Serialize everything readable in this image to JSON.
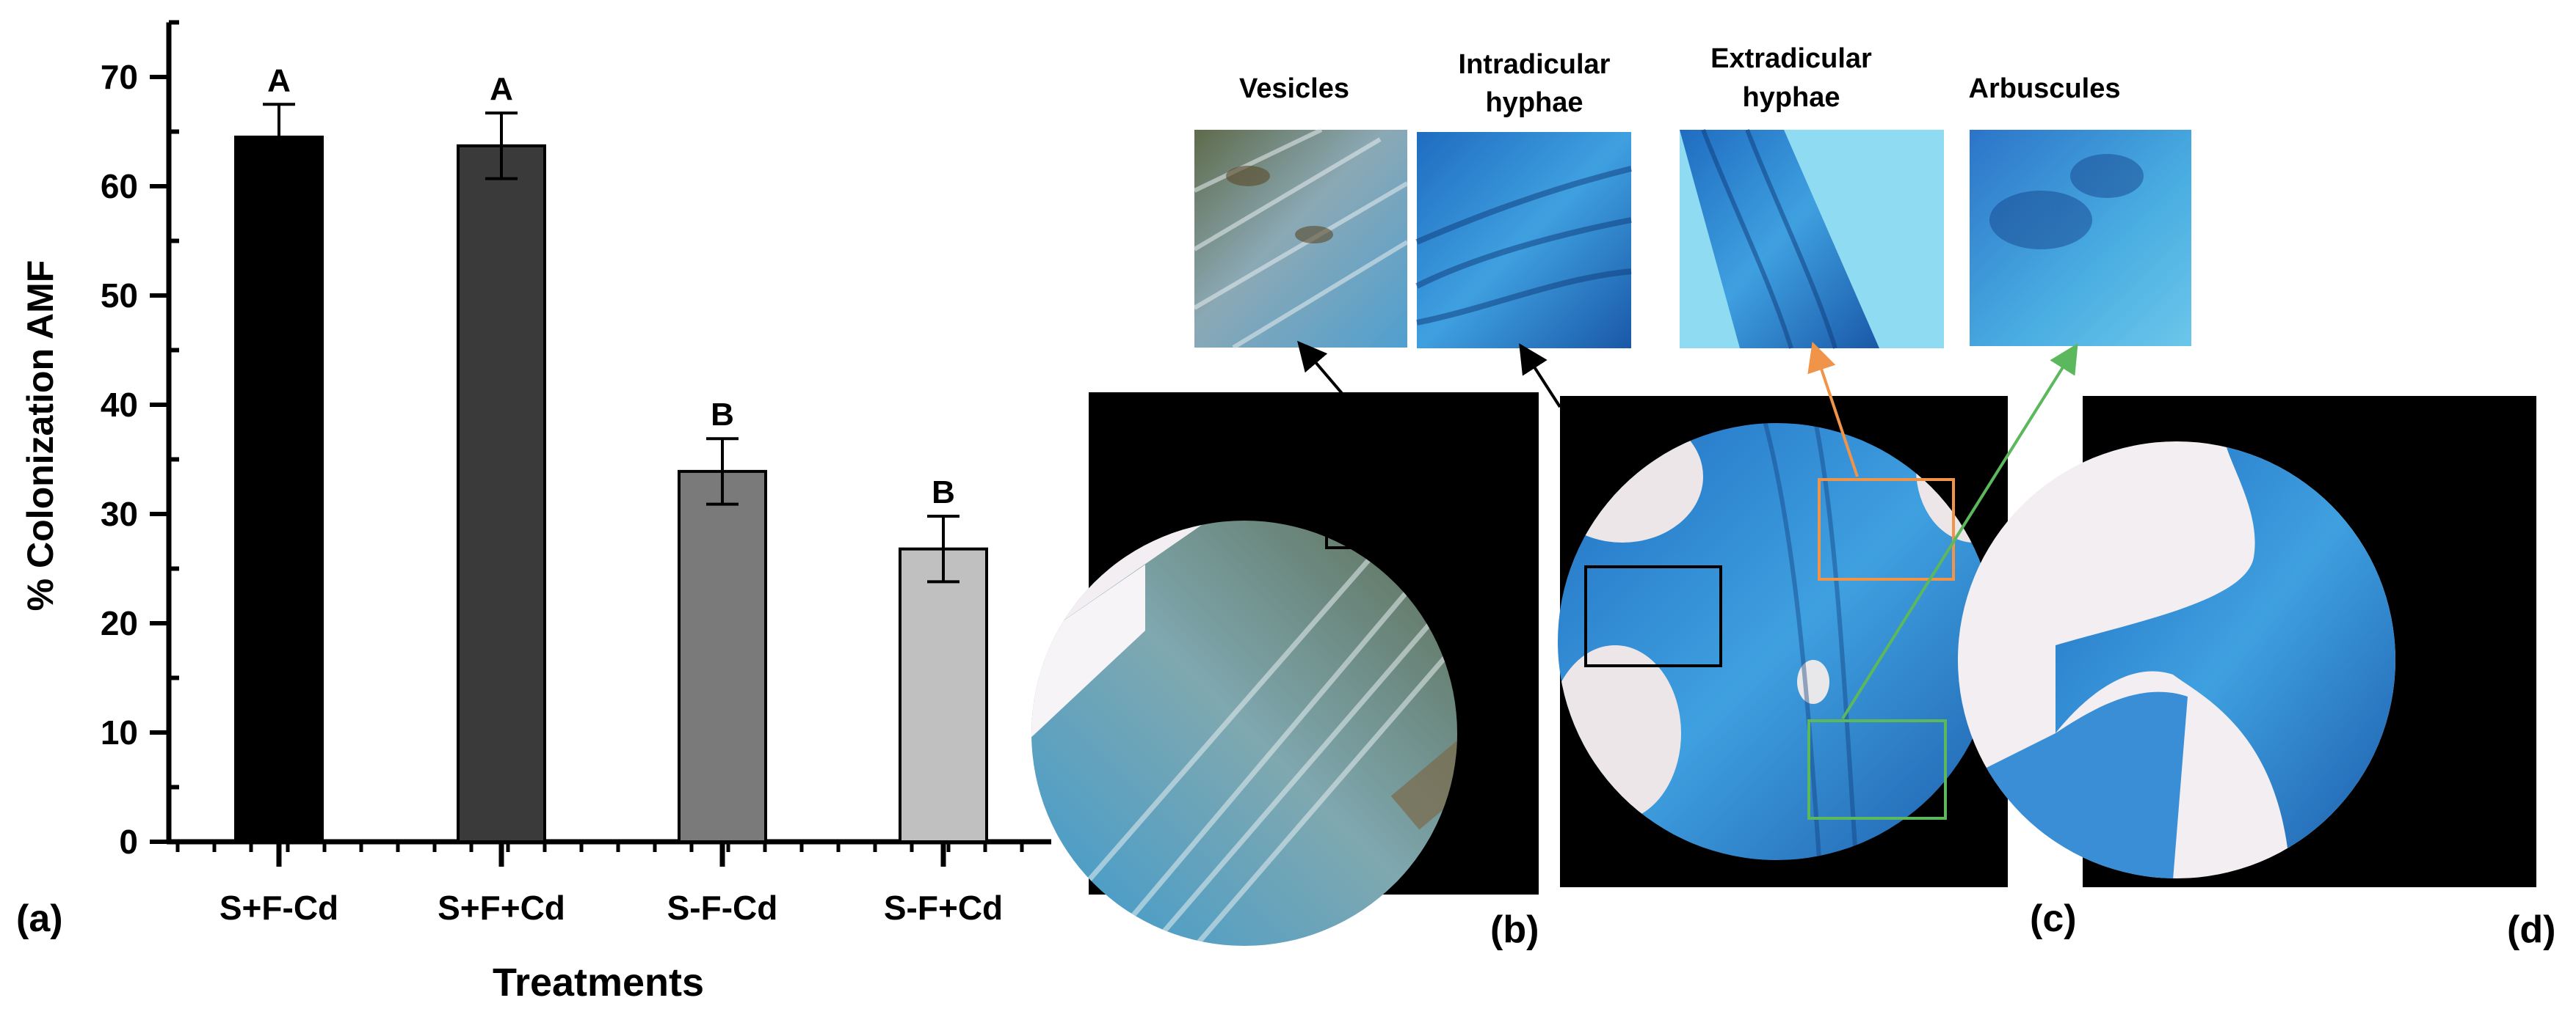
{
  "chart_data": {
    "type": "bar",
    "ylabel": "% Colonization AMF",
    "xlabel": "Treatments",
    "categories": [
      "S+F-Cd",
      "S+F+Cd",
      "S-F-Cd",
      "S-F+Cd"
    ],
    "values": [
      64.5,
      63.7,
      33.9,
      26.8
    ],
    "errors": [
      3.0,
      3.0,
      3.0,
      3.0
    ],
    "significance_letters": [
      "A",
      "A",
      "B",
      "B"
    ],
    "bar_colors": [
      "#000000",
      "#3a3a3a",
      "#7a7a7a",
      "#c0c0c0"
    ],
    "ylim": [
      0,
      75
    ],
    "yticks": [
      0,
      10,
      20,
      30,
      40,
      50,
      60,
      70
    ],
    "grid": false,
    "legend": "none"
  },
  "panel_labels": {
    "a": "(a)",
    "b": "(b)",
    "c": "(c)",
    "d": "(d)"
  },
  "micrographs": {
    "insets": [
      {
        "label_line1": "Vesicles",
        "label_line2": ""
      },
      {
        "label_line1": "Intradicular",
        "label_line2": "hyphae"
      },
      {
        "label_line1": "Extradicular",
        "label_line2": "hyphae"
      },
      {
        "label_line1": "Arbuscules",
        "label_line2": ""
      }
    ],
    "colors": {
      "stain_blue": "#2f8fd8",
      "dark_blue": "#1a4f9a",
      "box_black": "#000000",
      "box_orange": "#f0944a",
      "box_green": "#5cb85c"
    }
  }
}
